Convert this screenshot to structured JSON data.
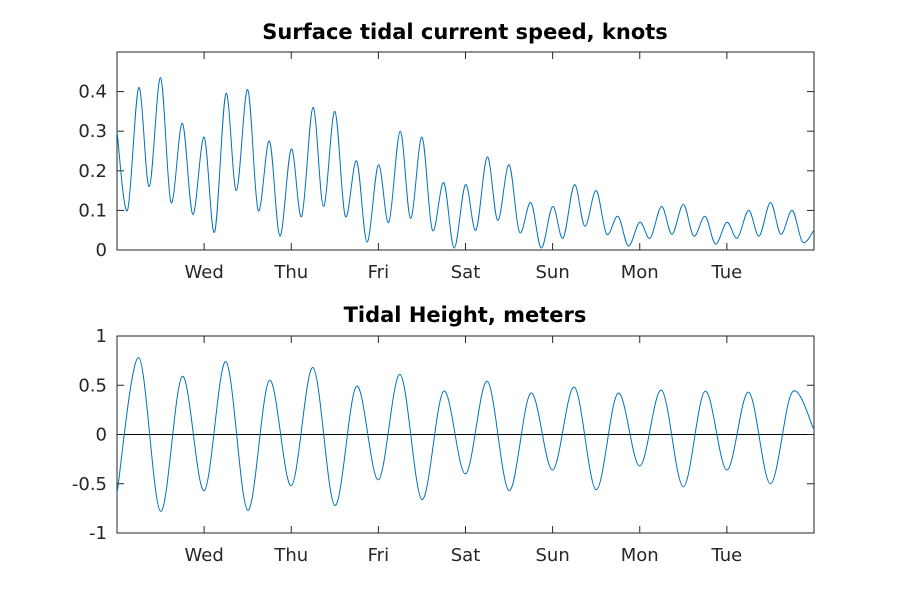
{
  "chart_data": [
    {
      "type": "line",
      "title": "Surface tidal current speed, knots",
      "xlabel": "",
      "ylabel": "",
      "x_range_days": [
        0,
        8
      ],
      "x_ticks": [
        {
          "day": 1,
          "label": "Wed"
        },
        {
          "day": 2,
          "label": "Thu"
        },
        {
          "day": 3,
          "label": "Fri"
        },
        {
          "day": 4,
          "label": "Sat"
        },
        {
          "day": 5,
          "label": "Sun"
        },
        {
          "day": 6,
          "label": "Mon"
        },
        {
          "day": 7,
          "label": "Tue"
        }
      ],
      "ylim": [
        0,
        0.5
      ],
      "y_ticks": [
        0,
        0.1,
        0.2,
        0.3,
        0.4
      ],
      "y_tick_labels": [
        "0",
        "0.1",
        "0.2",
        "0.3",
        "0.4"
      ],
      "grid": false,
      "legend": "none",
      "color": "#0072BD",
      "series": [
        {
          "x": [
            0.0,
            0.12,
            0.25,
            0.37,
            0.5,
            0.62,
            0.75,
            0.87,
            1.0,
            1.12,
            1.25,
            1.37,
            1.5,
            1.62,
            1.75,
            1.87,
            2.0,
            2.12,
            2.25,
            2.37,
            2.5,
            2.62,
            2.75,
            2.87,
            3.0,
            3.12,
            3.25,
            3.37,
            3.5,
            3.62,
            3.75,
            3.87,
            4.0,
            4.12,
            4.25,
            4.37,
            4.5,
            4.62,
            4.75,
            4.87,
            5.0,
            5.12,
            5.25,
            5.37,
            5.5,
            5.62,
            5.75,
            5.87,
            6.0,
            6.12,
            6.25,
            6.37,
            6.5,
            6.62,
            6.75,
            6.87,
            7.0,
            7.12,
            7.25,
            7.37,
            7.5,
            7.62,
            7.75,
            7.87,
            8.0
          ],
          "y": [
            0.3,
            0.1,
            0.41,
            0.16,
            0.435,
            0.12,
            0.32,
            0.09,
            0.285,
            0.045,
            0.395,
            0.15,
            0.405,
            0.1,
            0.275,
            0.035,
            0.255,
            0.085,
            0.36,
            0.11,
            0.35,
            0.085,
            0.225,
            0.02,
            0.215,
            0.07,
            0.3,
            0.08,
            0.285,
            0.05,
            0.17,
            0.005,
            0.165,
            0.05,
            0.235,
            0.075,
            0.215,
            0.045,
            0.12,
            0.005,
            0.11,
            0.03,
            0.165,
            0.06,
            0.15,
            0.04,
            0.085,
            0.01,
            0.07,
            0.03,
            0.11,
            0.04,
            0.115,
            0.035,
            0.085,
            0.015,
            0.07,
            0.03,
            0.1,
            0.035,
            0.12,
            0.04,
            0.1,
            0.02,
            0.05
          ]
        }
      ]
    },
    {
      "type": "line",
      "title": "Tidal Height, meters",
      "xlabel": "",
      "ylabel": "",
      "x_range_days": [
        0,
        8
      ],
      "x_ticks": [
        {
          "day": 1,
          "label": "Wed"
        },
        {
          "day": 2,
          "label": "Thu"
        },
        {
          "day": 3,
          "label": "Fri"
        },
        {
          "day": 4,
          "label": "Sat"
        },
        {
          "day": 5,
          "label": "Sun"
        },
        {
          "day": 6,
          "label": "Mon"
        },
        {
          "day": 7,
          "label": "Tue"
        }
      ],
      "ylim": [
        -1,
        1
      ],
      "y_ticks": [
        -1,
        -0.5,
        0,
        0.5,
        1
      ],
      "y_tick_labels": [
        "-1",
        "-0.5",
        "0",
        "0.5",
        "1"
      ],
      "zero_line": true,
      "grid": false,
      "legend": "none",
      "color": "#0072BD",
      "series": [
        {
          "x": [
            0.0,
            0.25,
            0.5,
            0.75,
            1.0,
            1.25,
            1.5,
            1.75,
            2.0,
            2.25,
            2.5,
            2.75,
            3.0,
            3.25,
            3.5,
            3.75,
            4.0,
            4.25,
            4.5,
            4.75,
            5.0,
            5.25,
            5.5,
            5.75,
            6.0,
            6.25,
            6.5,
            6.75,
            7.0,
            7.25,
            7.5,
            7.75,
            8.0
          ],
          "y": [
            -0.6,
            0.78,
            -0.78,
            0.59,
            -0.57,
            0.74,
            -0.77,
            0.55,
            -0.52,
            0.68,
            -0.72,
            0.49,
            -0.46,
            0.61,
            -0.66,
            0.44,
            -0.4,
            0.54,
            -0.57,
            0.42,
            -0.36,
            0.48,
            -0.56,
            0.42,
            -0.32,
            0.45,
            -0.53,
            0.44,
            -0.36,
            0.43,
            -0.5,
            0.43,
            0.05
          ]
        }
      ]
    }
  ]
}
